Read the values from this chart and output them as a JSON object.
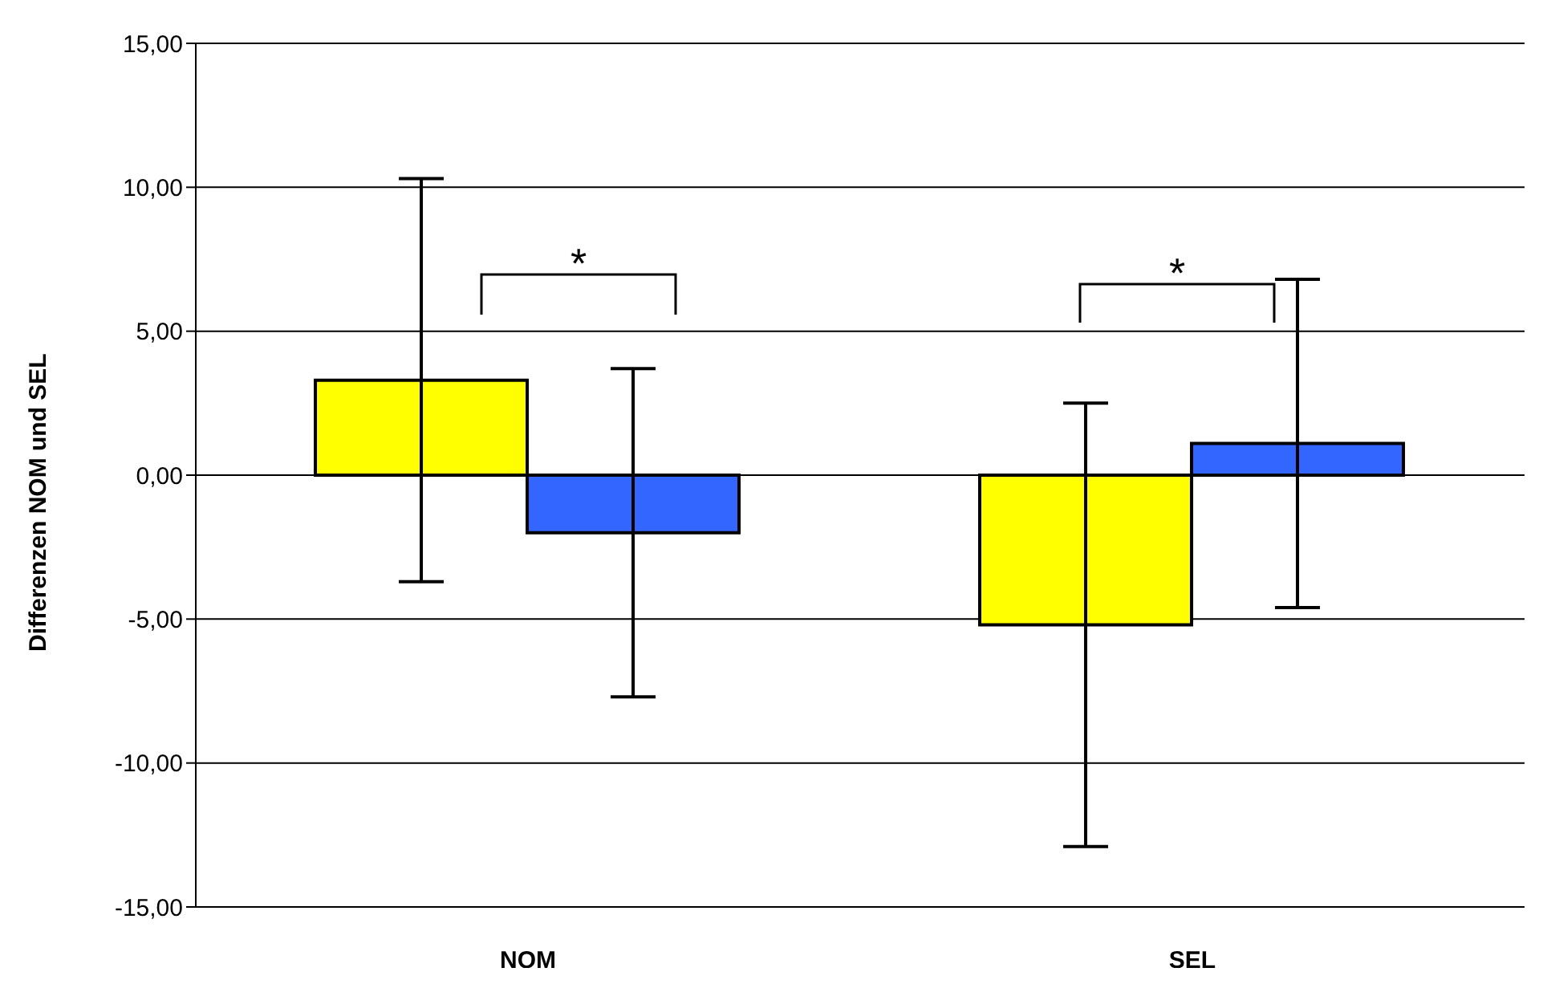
{
  "chart_data": {
    "type": "bar",
    "ylabel": "Differenzen NOM und SEL",
    "categories": [
      "NOM",
      "SEL"
    ],
    "series": [
      {
        "color": "#ffff00",
        "values": [
          3.3,
          -5.2
        ],
        "errors": [
          [
            -3.7,
            10.3
          ],
          [
            -12.9,
            2.5
          ]
        ]
      },
      {
        "color": "#3366ff",
        "values": [
          -2.0,
          1.1
        ],
        "errors": [
          [
            -7.7,
            3.7
          ],
          [
            -4.6,
            6.8
          ]
        ]
      }
    ],
    "ylim": [
      -15,
      15
    ],
    "yticks": [
      {
        "value": -15,
        "label": "-15,00"
      },
      {
        "value": -10,
        "label": "-10,00"
      },
      {
        "value": -5,
        "label": "-5,00"
      },
      {
        "value": 0,
        "label": "0,00"
      },
      {
        "value": 5,
        "label": "5,00"
      },
      {
        "value": 10,
        "label": "10,00"
      },
      {
        "value": 15,
        "label": "15,00"
      }
    ],
    "grid": "y",
    "annotations": [
      "*",
      "*"
    ]
  }
}
